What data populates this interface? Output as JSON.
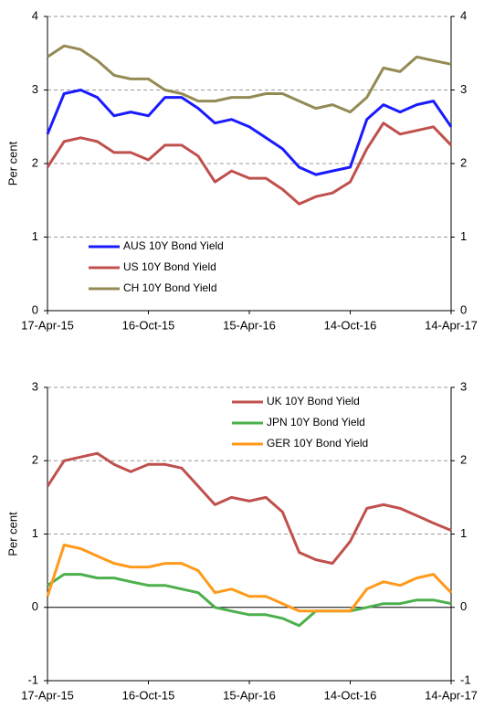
{
  "chart_data": [
    {
      "type": "line",
      "ylabel": "Per cent",
      "x": [
        "17-Apr-15",
        "17-May-15",
        "16-Jun-15",
        "16-Jul-15",
        "15-Aug-15",
        "14-Sep-15",
        "16-Oct-15",
        "15-Nov-15",
        "15-Dec-15",
        "14-Jan-16",
        "13-Feb-16",
        "14-Mar-16",
        "15-Apr-16",
        "15-May-16",
        "14-Jun-16",
        "14-Jul-16",
        "13-Aug-16",
        "12-Sep-16",
        "14-Oct-16",
        "13-Nov-16",
        "13-Dec-16",
        "12-Jan-17",
        "11-Feb-17",
        "13-Mar-17",
        "14-Apr-17"
      ],
      "xlim": [
        "17-Apr-15",
        "14-Apr-17"
      ],
      "xticks": [
        "17-Apr-15",
        "16-Oct-15",
        "15-Apr-16",
        "14-Oct-16",
        "14-Apr-17"
      ],
      "ylim": [
        0,
        4
      ],
      "yticks": [
        0,
        1,
        2,
        3,
        4
      ],
      "y2lim": [
        0,
        4
      ],
      "y2ticks": [
        0,
        1,
        2,
        3,
        4
      ],
      "grid": true,
      "legend": "lower left",
      "series": [
        {
          "name": "AUS 10Y Bond Yield",
          "color": "#1a1aff",
          "values": [
            2.4,
            2.95,
            3.0,
            2.9,
            2.65,
            2.7,
            2.65,
            2.9,
            2.9,
            2.75,
            2.55,
            2.6,
            2.5,
            2.35,
            2.2,
            1.95,
            1.85,
            1.9,
            1.95,
            2.6,
            2.8,
            2.7,
            2.8,
            2.85,
            2.5
          ]
        },
        {
          "name": "US 10Y Bond Yield",
          "color": "#c0504d",
          "values": [
            1.95,
            2.3,
            2.35,
            2.3,
            2.15,
            2.15,
            2.05,
            2.25,
            2.25,
            2.1,
            1.75,
            1.9,
            1.8,
            1.8,
            1.65,
            1.45,
            1.55,
            1.6,
            1.75,
            2.2,
            2.55,
            2.4,
            2.45,
            2.5,
            2.25
          ]
        },
        {
          "name": "CH 10Y Bond Yield",
          "color": "#948a54",
          "values": [
            3.45,
            3.6,
            3.55,
            3.4,
            3.2,
            3.15,
            3.15,
            3.0,
            2.95,
            2.85,
            2.85,
            2.9,
            2.9,
            2.95,
            2.95,
            2.85,
            2.75,
            2.8,
            2.7,
            2.9,
            3.3,
            3.25,
            3.45,
            3.4,
            3.35
          ]
        }
      ]
    },
    {
      "type": "line",
      "ylabel": "Per cent",
      "x": [
        "17-Apr-15",
        "17-May-15",
        "16-Jun-15",
        "16-Jul-15",
        "15-Aug-15",
        "14-Sep-15",
        "16-Oct-15",
        "15-Nov-15",
        "15-Dec-15",
        "14-Jan-16",
        "13-Feb-16",
        "14-Mar-16",
        "15-Apr-16",
        "15-May-16",
        "14-Jun-16",
        "14-Jul-16",
        "13-Aug-16",
        "12-Sep-16",
        "14-Oct-16",
        "13-Nov-16",
        "13-Dec-16",
        "12-Jan-17",
        "11-Feb-17",
        "13-Mar-17",
        "14-Apr-17"
      ],
      "xlim": [
        "17-Apr-15",
        "14-Apr-17"
      ],
      "xticks": [
        "17-Apr-15",
        "16-Oct-15",
        "15-Apr-16",
        "14-Oct-16",
        "14-Apr-17"
      ],
      "ylim": [
        -1,
        3
      ],
      "yticks": [
        -1,
        0,
        1,
        2,
        3
      ],
      "y2lim": [
        -1,
        3
      ],
      "y2ticks": [
        -1,
        0,
        1,
        2,
        3
      ],
      "grid": true,
      "legend": "upper right",
      "series": [
        {
          "name": "UK 10Y Bond Yield",
          "color": "#c0504d",
          "values": [
            1.65,
            2.0,
            2.05,
            2.1,
            1.95,
            1.85,
            1.95,
            1.95,
            1.9,
            1.65,
            1.4,
            1.5,
            1.45,
            1.5,
            1.3,
            0.75,
            0.65,
            0.6,
            0.9,
            1.35,
            1.4,
            1.35,
            1.25,
            1.15,
            1.05
          ]
        },
        {
          "name": "JPN 10Y Bond Yield",
          "color": "#4cb04c",
          "values": [
            0.3,
            0.45,
            0.45,
            0.4,
            0.4,
            0.35,
            0.3,
            0.3,
            0.25,
            0.2,
            0.0,
            -0.05,
            -0.1,
            -0.1,
            -0.15,
            -0.25,
            -0.05,
            -0.05,
            -0.05,
            0.0,
            0.05,
            0.05,
            0.1,
            0.1,
            0.05
          ]
        },
        {
          "name": "GER 10Y Bond Yield",
          "color": "#ff9a1a",
          "values": [
            0.15,
            0.85,
            0.8,
            0.7,
            0.6,
            0.55,
            0.55,
            0.6,
            0.6,
            0.5,
            0.2,
            0.25,
            0.15,
            0.15,
            0.05,
            -0.05,
            -0.05,
            -0.05,
            -0.05,
            0.25,
            0.35,
            0.3,
            0.4,
            0.45,
            0.2
          ]
        }
      ]
    }
  ]
}
